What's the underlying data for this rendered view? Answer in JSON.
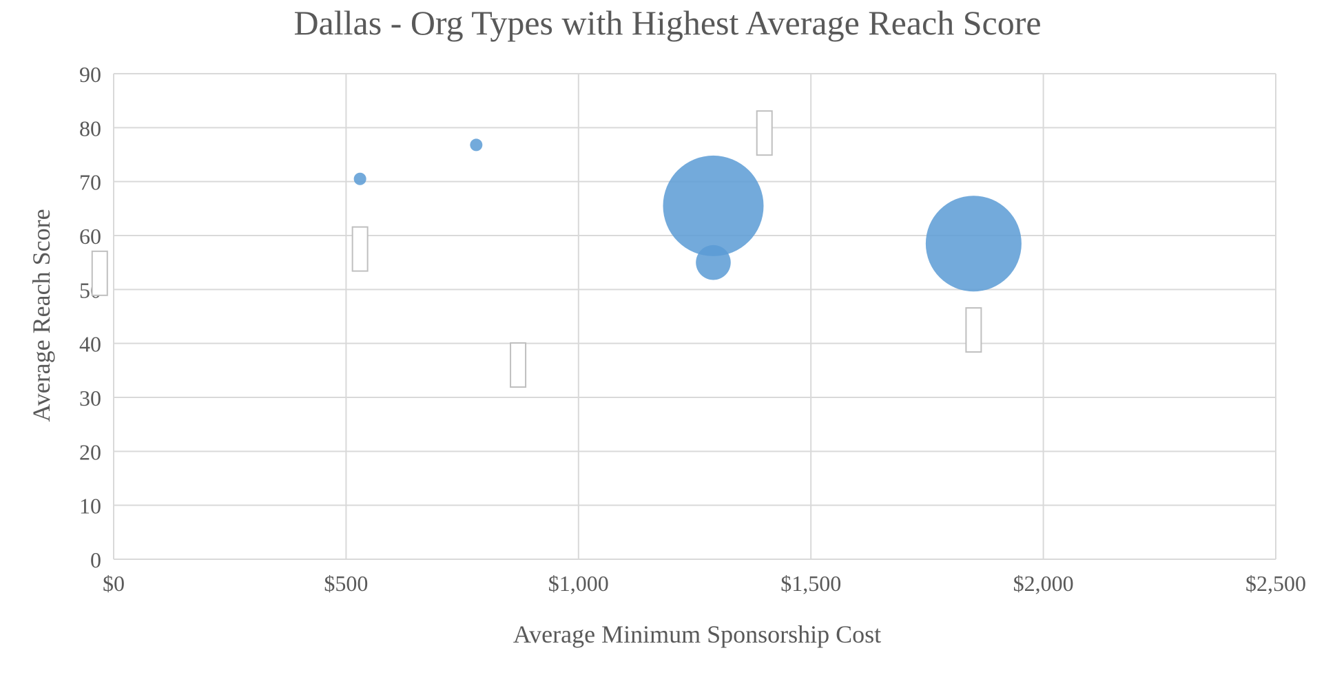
{
  "chart_data": {
    "type": "bubble",
    "title": "Dallas - Org Types with Highest Average Reach Score",
    "xlabel": "Average Minimum Sponsorship Cost",
    "ylabel": "Average Reach Score",
    "xlim": [
      0,
      2500
    ],
    "ylim": [
      0,
      90
    ],
    "x_ticks": [
      {
        "value": 0,
        "label": "$0"
      },
      {
        "value": 500,
        "label": "$500"
      },
      {
        "value": 1000,
        "label": "$1,000"
      },
      {
        "value": 1500,
        "label": "$1,500"
      },
      {
        "value": 2000,
        "label": "$2,000"
      },
      {
        "value": 2500,
        "label": "$2,500"
      }
    ],
    "y_ticks": [
      {
        "value": 0,
        "label": "0"
      },
      {
        "value": 10,
        "label": "10"
      },
      {
        "value": 20,
        "label": "20"
      },
      {
        "value": 30,
        "label": "30"
      },
      {
        "value": 40,
        "label": "40"
      },
      {
        "value": 50,
        "label": "50"
      },
      {
        "value": 60,
        "label": "60"
      },
      {
        "value": 70,
        "label": "70"
      },
      {
        "value": 80,
        "label": "80"
      },
      {
        "value": 90,
        "label": "90"
      }
    ],
    "grid": true,
    "bubble_color": "#5b9bd5",
    "bubble_opacity": 0.85,
    "bubbles": [
      {
        "x": 530,
        "y": 70.5,
        "size": 1
      },
      {
        "x": 780,
        "y": 76.8,
        "size": 1
      },
      {
        "x": 1290,
        "y": 65.5,
        "size": 75
      },
      {
        "x": 1290,
        "y": 55,
        "size": 9
      },
      {
        "x": 1850,
        "y": 58.5,
        "size": 68
      }
    ],
    "empty_labels": [
      {
        "x": -30,
        "y": 53
      },
      {
        "x": 530,
        "y": 57.5
      },
      {
        "x": 870,
        "y": 36
      },
      {
        "x": 1400,
        "y": 79
      },
      {
        "x": 1850,
        "y": 42.5
      }
    ]
  }
}
